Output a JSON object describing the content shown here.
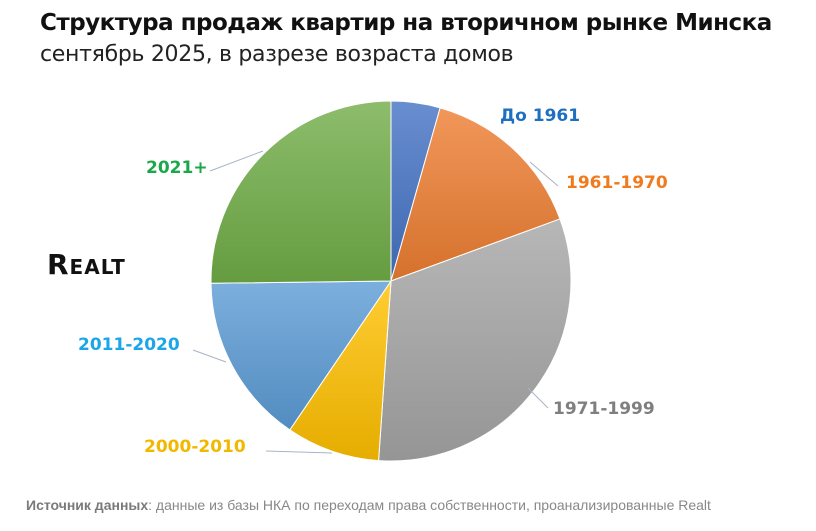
{
  "chart_data": {
    "type": "pie",
    "title": "Структура продаж квартир на вторичном рынке Минска",
    "subtitle": "сентябрь 2025, в разрезе возраста домов",
    "categories": [
      "До 1961",
      "1961-1970",
      "1971-1999",
      "2000-2010",
      "2011-2020",
      "2021+"
    ],
    "values": [
      4.4,
      15.0,
      31.7,
      8.4,
      15.3,
      25.2
    ],
    "unit": "%",
    "colors": [
      "#4472C4",
      "#ED7D31",
      "#A5A5A5",
      "#FFC000",
      "#5B9BD5",
      "#70AD47"
    ],
    "label_colors": [
      "#1F6FC0",
      "#F07A1E",
      "#7F7F7F",
      "#F2B800",
      "#1AA6E8",
      "#1BA84A"
    ],
    "legend": "none"
  },
  "logo": "Realt",
  "footer": {
    "source_label": "Источник данных",
    "source_text": ": данные из базы НКА по переходам права собственности, проанализированные Realt"
  }
}
